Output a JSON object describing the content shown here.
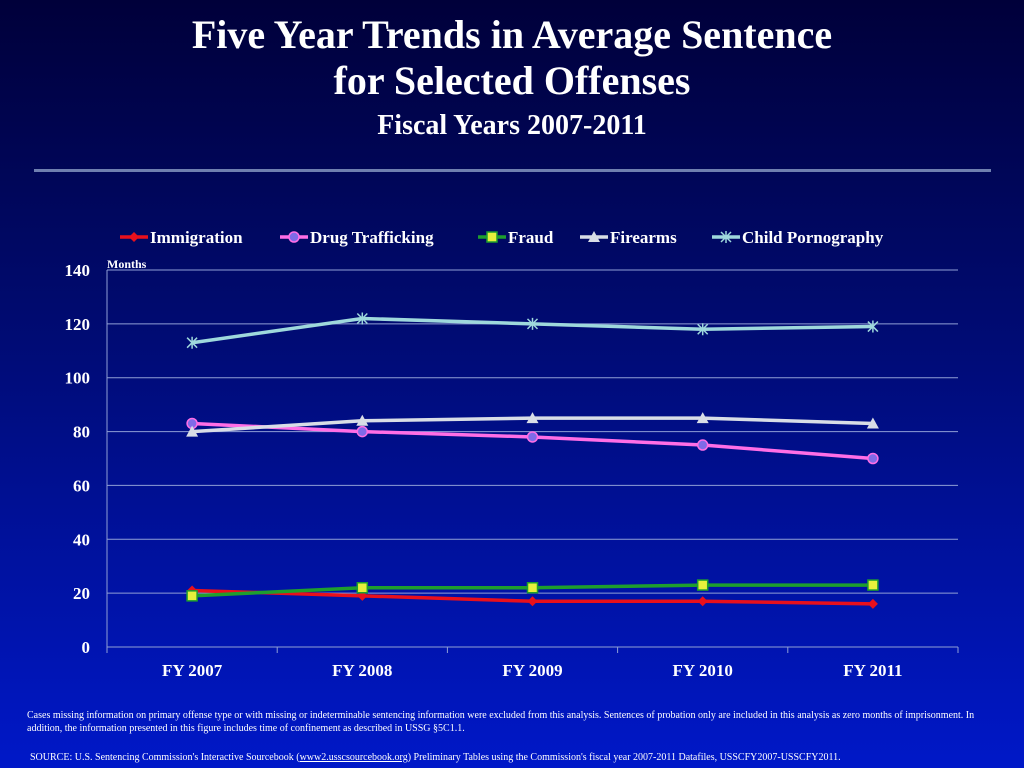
{
  "header": {
    "title_line1": "Five Year Trends in Average Sentence",
    "title_line2": "for Selected Offenses",
    "subtitle": "Fiscal Years 2007-2011"
  },
  "chart_data": {
    "type": "line",
    "title": "Five Year Trends in Average Sentence for Selected Offenses",
    "subtitle": "Fiscal Years 2007-2011",
    "xlabel": "",
    "ylabel": "Months",
    "categories": [
      "FY 2007",
      "FY 2008",
      "FY 2009",
      "FY 2010",
      "FY 2011"
    ],
    "ylim": [
      0,
      140
    ],
    "yticks": [
      0,
      20,
      40,
      60,
      80,
      100,
      120,
      140
    ],
    "grid": true,
    "legend_position": "top",
    "series": [
      {
        "name": "Immigration",
        "values": [
          21,
          19,
          17,
          17,
          16
        ],
        "color": "#e8101c",
        "marker": "diamond"
      },
      {
        "name": "Drug Trafficking",
        "values": [
          83,
          80,
          78,
          75,
          70
        ],
        "color": "#ff6ee6",
        "marker": "circle",
        "marker_fill": "#7f6be8"
      },
      {
        "name": "Fraud",
        "values": [
          19,
          22,
          22,
          23,
          23
        ],
        "color": "#1e9e2e",
        "marker": "square",
        "marker_fill": "#e6f03c"
      },
      {
        "name": "Firearms",
        "values": [
          80,
          84,
          85,
          85,
          83
        ],
        "color": "#d8dde6",
        "marker": "triangle"
      },
      {
        "name": "Child Pornography",
        "values": [
          113,
          122,
          120,
          118,
          119
        ],
        "color": "#9ed8dc",
        "marker": "star"
      }
    ]
  },
  "footer": {
    "notes": "Cases missing information on primary offense type or with missing or indeterminable sentencing information were excluded from this analysis. Sentences of probation only are included in this analysis as zero months of imprisonment. In addition, the information presented in this figure includes time of confinement as described in USSG §5C1.1.",
    "source_prefix": "SOURCE: U.S. Sentencing Commission's Interactive Sourcebook (",
    "source_link": "www2.usscsourcebook.org",
    "source_suffix": ") Preliminary Tables using the Commission's fiscal year 2007-2011 Datafiles, USSCFY2007-USSCFY2011."
  }
}
